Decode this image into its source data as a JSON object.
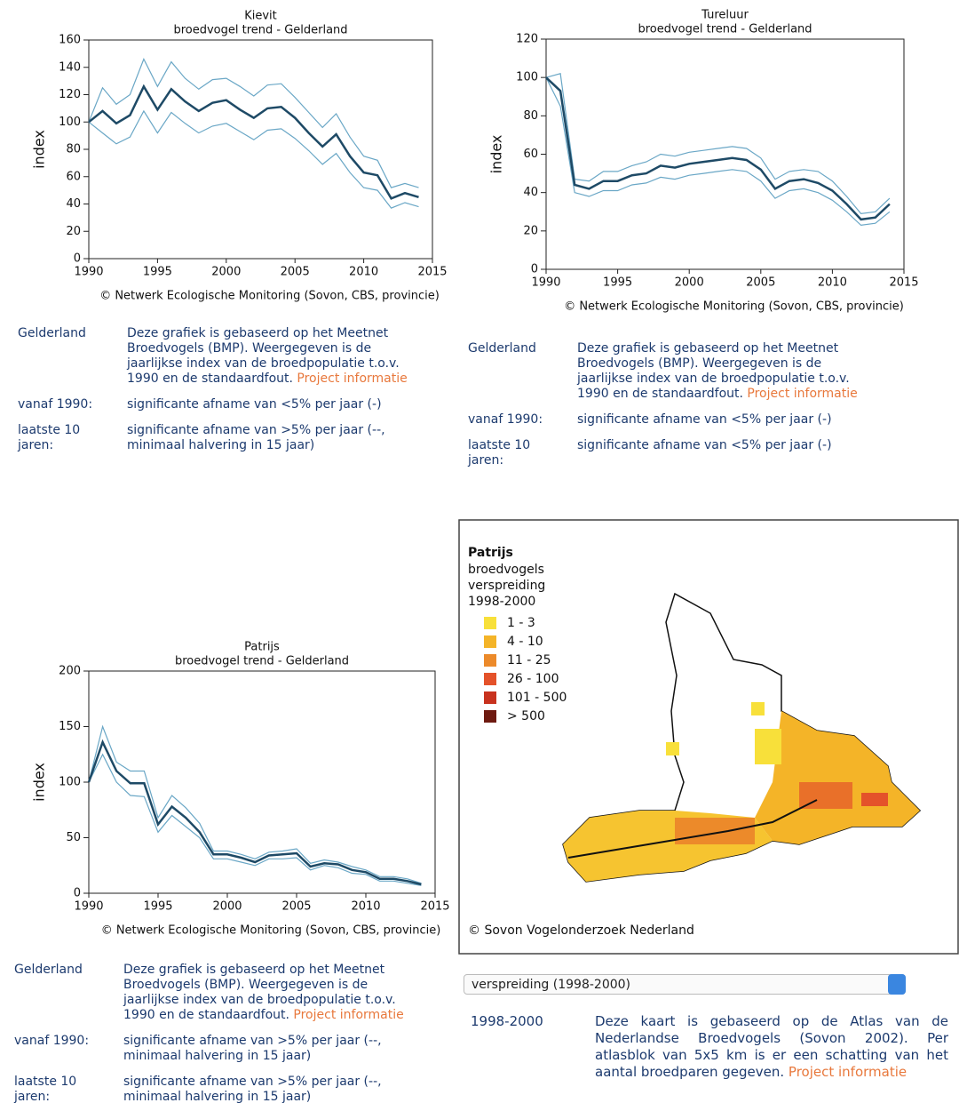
{
  "chart_data": [
    {
      "type": "line",
      "title": "Kievit",
      "subtitle": "broedvogel trend - Gelderland",
      "y_label": "index",
      "x": [
        1990,
        1991,
        1992,
        1993,
        1994,
        1995,
        1996,
        1997,
        1998,
        1999,
        2000,
        2001,
        2002,
        2003,
        2004,
        2005,
        2006,
        2007,
        2008,
        2009,
        2010,
        2011,
        2012,
        2013,
        2014
      ],
      "xlim": [
        1990,
        2015
      ],
      "xticks": [
        1990,
        1995,
        2000,
        2005,
        2010,
        2015
      ],
      "ylim": [
        0,
        160
      ],
      "yticks": [
        0,
        20,
        40,
        60,
        80,
        100,
        120,
        140,
        160
      ],
      "series": [
        {
          "color": "#1e4a66",
          "values": [
            100,
            108,
            99,
            105,
            126,
            109,
            124,
            115,
            108,
            114,
            116,
            109,
            103,
            110,
            111,
            103,
            92,
            82,
            91,
            75,
            63,
            61,
            44,
            48,
            45
          ]
        },
        {
          "color": "#6aa7c6",
          "values": [
            100,
            125,
            113,
            120,
            146,
            126,
            144,
            132,
            124,
            131,
            132,
            126,
            119,
            127,
            128,
            118,
            107,
            96,
            106,
            89,
            75,
            72,
            52,
            55,
            52
          ]
        },
        {
          "color": "#6aa7c6",
          "values": [
            100,
            92,
            84,
            89,
            108,
            92,
            107,
            99,
            92,
            97,
            99,
            93,
            87,
            94,
            95,
            88,
            79,
            69,
            77,
            63,
            52,
            50,
            37,
            41,
            38
          ]
        }
      ],
      "source": "© Netwerk Ecologische Monitoring (Sovon, CBS, provincie)"
    },
    {
      "type": "line",
      "title": "Tureluur",
      "subtitle": "broedvogel trend - Gelderland",
      "y_label": "index",
      "x": [
        1990,
        1991,
        1992,
        1993,
        1994,
        1995,
        1996,
        1997,
        1998,
        1999,
        2000,
        2001,
        2002,
        2003,
        2004,
        2005,
        2006,
        2007,
        2008,
        2009,
        2010,
        2011,
        2012,
        2013,
        2014
      ],
      "xlim": [
        1990,
        2015
      ],
      "xticks": [
        1990,
        1995,
        2000,
        2005,
        2010,
        2015
      ],
      "ylim": [
        0,
        120
      ],
      "yticks": [
        0,
        20,
        40,
        60,
        80,
        100,
        120
      ],
      "series": [
        {
          "color": "#1e4a66",
          "values": [
            100,
            93,
            44,
            42,
            46,
            46,
            49,
            50,
            54,
            53,
            55,
            56,
            57,
            58,
            57,
            52,
            42,
            46,
            47,
            45,
            41,
            34,
            26,
            27,
            34
          ]
        },
        {
          "color": "#6aa7c6",
          "values": [
            100,
            102,
            47,
            46,
            51,
            51,
            54,
            56,
            60,
            59,
            61,
            62,
            63,
            64,
            63,
            58,
            47,
            51,
            52,
            51,
            46,
            38,
            29,
            30,
            37
          ]
        },
        {
          "color": "#6aa7c6",
          "values": [
            100,
            85,
            40,
            38,
            41,
            41,
            44,
            45,
            48,
            47,
            49,
            50,
            51,
            52,
            51,
            46,
            37,
            41,
            42,
            40,
            36,
            30,
            23,
            24,
            30
          ]
        }
      ],
      "source": "© Netwerk Ecologische Monitoring (Sovon, CBS, provincie)"
    },
    {
      "type": "line",
      "title": "Patrijs",
      "subtitle": "broedvogel trend - Gelderland",
      "y_label": "index",
      "x": [
        1990,
        1991,
        1992,
        1993,
        1994,
        1995,
        1996,
        1997,
        1998,
        1999,
        2000,
        2001,
        2002,
        2003,
        2004,
        2005,
        2006,
        2007,
        2008,
        2009,
        2010,
        2011,
        2012,
        2013,
        2014
      ],
      "xlim": [
        1990,
        2015
      ],
      "xticks": [
        1990,
        1995,
        2000,
        2005,
        2010,
        2015
      ],
      "ylim": [
        0,
        200
      ],
      "yticks": [
        0,
        50,
        100,
        150,
        200
      ],
      "series": [
        {
          "color": "#1e4a66",
          "values": [
            100,
            136,
            110,
            99,
            99,
            62,
            78,
            68,
            55,
            35,
            35,
            32,
            28,
            34,
            35,
            36,
            24,
            27,
            26,
            21,
            19,
            13,
            13,
            11,
            8
          ]
        },
        {
          "color": "#6aa7c6",
          "values": [
            100,
            150,
            118,
            110,
            110,
            68,
            88,
            77,
            63,
            38,
            38,
            35,
            31,
            37,
            38,
            40,
            27,
            30,
            28,
            24,
            21,
            15,
            15,
            13,
            9
          ]
        },
        {
          "color": "#6aa7c6",
          "values": [
            100,
            125,
            100,
            88,
            87,
            55,
            70,
            60,
            50,
            31,
            31,
            28,
            25,
            31,
            31,
            32,
            21,
            25,
            23,
            18,
            17,
            11,
            11,
            9,
            7
          ]
        }
      ],
      "source": "© Netwerk Ecologische Monitoring (Sovon, CBS, provincie)"
    }
  ],
  "info": [
    {
      "region": "Gelderland",
      "description": "Deze grafiek is gebaseerd op het Meetnet Broedvogels (BMP). Weergegeven is de jaarlijkse index van de broedpopulatie t.o.v. 1990 en de standaardfout.",
      "link": "Project informatie",
      "trends": [
        {
          "label": "vanaf 1990:",
          "text": "significante afname van <5% per jaar (-)"
        },
        {
          "label": "laatste 10 jaren:",
          "text": "significante afname van >5% per jaar (--, minimaal halvering in 15 jaar)"
        }
      ]
    },
    {
      "region": "Gelderland",
      "description": "Deze grafiek is gebaseerd op het Meetnet Broedvogels (BMP). Weergegeven is de jaarlijkse index van de broedpopulatie t.o.v. 1990 en de standaardfout.",
      "link": "Project informatie",
      "trends": [
        {
          "label": "vanaf 1990:",
          "text": "significante afname van <5% per jaar (-)"
        },
        {
          "label": "laatste 10 jaren:",
          "text": "significante afname van <5% per jaar (-)"
        }
      ]
    },
    {
      "region": "Gelderland",
      "description": "Deze grafiek is gebaseerd op het Meetnet Broedvogels (BMP). Weergegeven is de jaarlijkse index van de broedpopulatie t.o.v. 1990 en de standaardfout.",
      "link": "Project informatie",
      "trends": [
        {
          "label": "vanaf 1990:",
          "text": "significante afname van >5% per jaar (--, minimaal halvering in 15 jaar)"
        },
        {
          "label": "laatste 10 jaren:",
          "text": "significante afname van >5% per jaar (--, minimaal halvering in 15 jaar)"
        }
      ]
    }
  ],
  "map": {
    "title": "Patrijs",
    "lines": [
      "broedvogels",
      "verspreiding",
      "1998-2000"
    ],
    "legend": [
      {
        "label": "1 - 3",
        "color": "#f8e03a"
      },
      {
        "label": "4 - 10",
        "color": "#f4b428"
      },
      {
        "label": "11 - 25",
        "color": "#ec8a2a"
      },
      {
        "label": "26 - 100",
        "color": "#e4522a"
      },
      {
        "label": "101 - 500",
        "color": "#c8321e"
      },
      {
        "label": "> 500",
        "color": "#6e1a10"
      }
    ],
    "source": "© Sovon Vogelonderzoek Nederland",
    "select": "verspreiding (1998-2000)",
    "info": {
      "period": "1998-2000",
      "description": "Deze kaart is gebaseerd op de Atlas van de Nederlandse Broedvogels (Sovon 2002). Per atlasblok van 5x5 km is er een schatting van het aantal broedparen gegeven.",
      "link": "Project informatie"
    }
  }
}
